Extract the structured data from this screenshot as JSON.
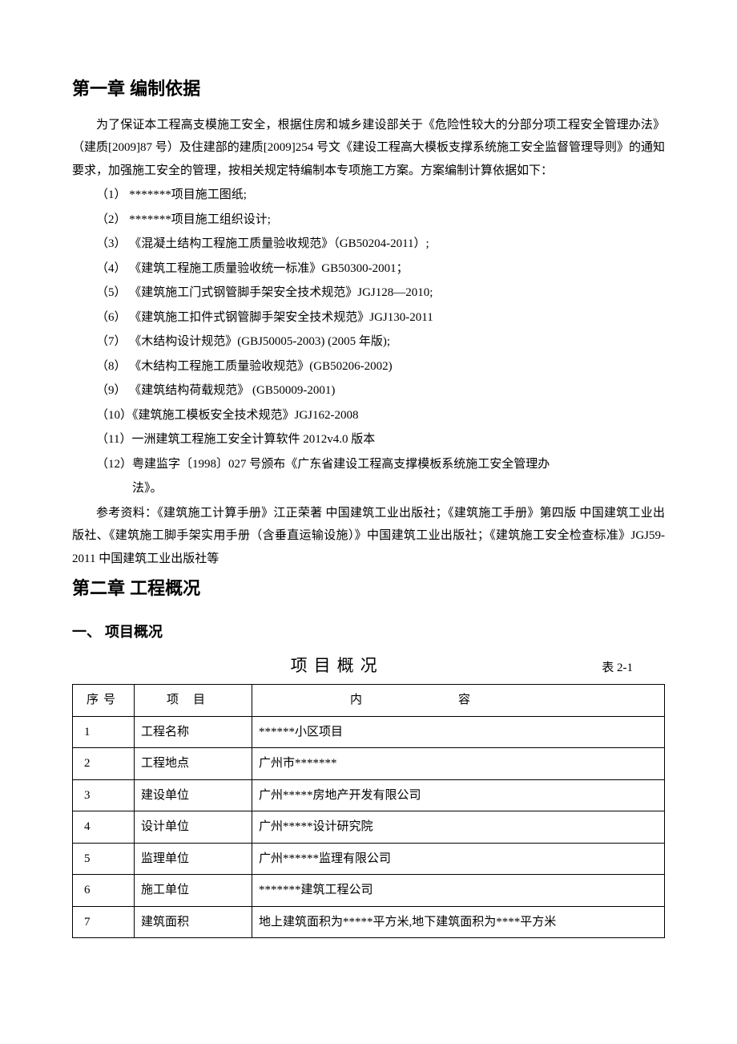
{
  "chapter1": {
    "title": "第一章  编制依据",
    "para": "为了保证本工程高支模施工安全，根据住房和城乡建设部关于《危险性较大的分部分项工程安全管理办法》（建质[2009]87 号）及住建部的建质[2009]254 号文《建设工程高大模板支撑系统施工安全监督管理导则》的通知要求，加强施工安全的管理，按相关规定特编制本专项施工方案。方案编制计算依据如下：",
    "items": [
      "（1） *******项目施工图纸;",
      "（2） *******项目施工组织设计;",
      "（3） 《混凝土结构工程施工质量验收规范》（GB50204-2011）;",
      "（4） 《建筑工程施工质量验收统一标准》GB50300-2001；",
      "（5） 《建筑施工门式钢管脚手架安全技术规范》JGJ128—2010;",
      "（6） 《建筑施工扣件式钢管脚手架安全技术规范》JGJ130-2011",
      "（7） 《木结构设计规范》(GBJ50005-2003) (2005 年版);",
      "（8） 《木结构工程施工质量验收规范》(GB50206-2002)",
      "（9） 《建筑结构荷载规范》  (GB50009-2001)",
      "（10）《建筑施工模板安全技术规范》JGJ162-2008",
      "（11）一洲建筑工程施工安全计算软件 2012v4.0 版本",
      "（12）粤建监字〔1998〕027 号颁布《广东省建设工程高支撑模板系统施工安全管理办"
    ],
    "item12_cont": "法》。",
    "ref": "参考资料：《建筑施工计算手册》江正荣著 中国建筑工业出版社；《建筑施工手册》第四版 中国建筑工业出版社、《建筑施工脚手架实用手册（含垂直运输设施）》中国建筑工业出版社；《建筑施工安全检查标准》JGJ59-2011 中国建筑工业出版社等"
  },
  "chapter2": {
    "title": "第二章  工程概况",
    "section1": "一、 项目概况",
    "table_title": "项目概况",
    "table_no": "表 2-1",
    "columns": {
      "seq": "序号",
      "item": "项目",
      "content": "内容"
    },
    "rows": [
      {
        "seq": "1",
        "item": "工程名称",
        "content": "******小区项目"
      },
      {
        "seq": "2",
        "item": "工程地点",
        "content": "广州市*******"
      },
      {
        "seq": "3",
        "item": "建设单位",
        "content": "广州*****房地产开发有限公司"
      },
      {
        "seq": "4",
        "item": "设计单位",
        "content": "广州*****设计研究院"
      },
      {
        "seq": "5",
        "item": "监理单位",
        "content": "广州******监理有限公司"
      },
      {
        "seq": "6",
        "item": "施工单位",
        "content": "*******建筑工程公司"
      },
      {
        "seq": "7",
        "item": "建筑面积",
        "content": "地上建筑面积为*****平方米,地下建筑面积为****平方米"
      }
    ]
  }
}
